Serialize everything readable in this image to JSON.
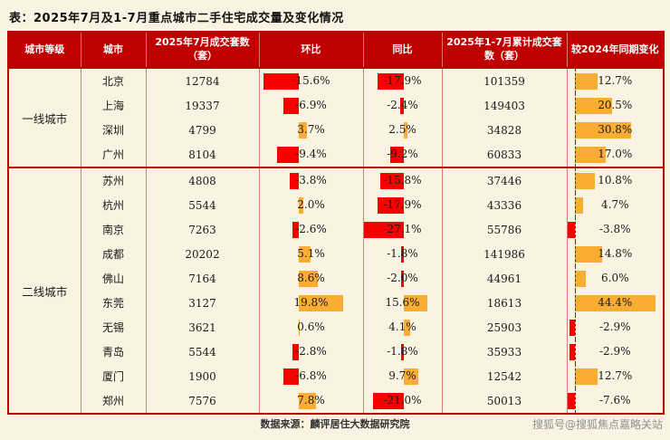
{
  "page": {
    "source": "数据来源：麟评居住大数据研究院",
    "watermark": "搜狐号@搜狐焦点嘉略关站"
  },
  "colors": {
    "page_bg": "#FBF3E1",
    "header_bg": "#C00000",
    "border": "#C00000",
    "negative_bar": "#F80000",
    "positive_bar": "#FBAD33"
  },
  "chart_data": {
    "type": "table",
    "title": "表：2025年7月及1-7月重点城市二手住宅成交量及变化情况",
    "columns": [
      "城市等级",
      "城市",
      "2025年7月成交套数（套）",
      "环比",
      "同比",
      "2025年1-7月累计成交套数（套）",
      "较2024年同期变化"
    ],
    "bar_columns_note": "环比 / 同比 / 较2024年同期变化 三列为数据条：负值红色向左，正值橙色向右",
    "groups": [
      {
        "tier": "一线城市",
        "rows": [
          {
            "city": "北京",
            "jul_sales": "12784",
            "mom": -15.6,
            "mom_text": "-15.6%",
            "yoy": -17.9,
            "yoy_text": "-17.9%",
            "cum_sales": "101359",
            "chg": 12.7,
            "chg_text": "12.7%"
          },
          {
            "city": "上海",
            "jul_sales": "19337",
            "mom": -6.9,
            "mom_text": "-6.9%",
            "yoy": -2.4,
            "yoy_text": "-2.4%",
            "cum_sales": "149403",
            "chg": 20.5,
            "chg_text": "20.5%"
          },
          {
            "city": "深圳",
            "jul_sales": "4799",
            "mom": 3.7,
            "mom_text": "3.7%",
            "yoy": 2.5,
            "yoy_text": "2.5%",
            "cum_sales": "34828",
            "chg": 30.8,
            "chg_text": "30.8%"
          },
          {
            "city": "广州",
            "jul_sales": "8104",
            "mom": -9.4,
            "mom_text": "-9.4%",
            "yoy": -9.2,
            "yoy_text": "-9.2%",
            "cum_sales": "60833",
            "chg": 17.0,
            "chg_text": "17.0%"
          }
        ]
      },
      {
        "tier": "二线城市",
        "rows": [
          {
            "city": "苏州",
            "jul_sales": "4808",
            "mom": -3.8,
            "mom_text": "-3.8%",
            "yoy": -15.8,
            "yoy_text": "-15.8%",
            "cum_sales": "37446",
            "chg": 10.8,
            "chg_text": "10.8%"
          },
          {
            "city": "杭州",
            "jul_sales": "5544",
            "mom": 2.0,
            "mom_text": "2.0%",
            "yoy": -17.9,
            "yoy_text": "-17.9%",
            "cum_sales": "43336",
            "chg": 4.7,
            "chg_text": "4.7%"
          },
          {
            "city": "南京",
            "jul_sales": "7263",
            "mom": -2.6,
            "mom_text": "-2.6%",
            "yoy": -27.1,
            "yoy_text": "-27.1%",
            "cum_sales": "55786",
            "chg": -3.8,
            "chg_text": "-3.8%"
          },
          {
            "city": "成都",
            "jul_sales": "20202",
            "mom": 5.1,
            "mom_text": "5.1%",
            "yoy": -1.8,
            "yoy_text": "-1.8%",
            "cum_sales": "141986",
            "chg": 14.8,
            "chg_text": "14.8%"
          },
          {
            "city": "佛山",
            "jul_sales": "7164",
            "mom": 8.6,
            "mom_text": "8.6%",
            "yoy": -2.0,
            "yoy_text": "-2.0%",
            "cum_sales": "44961",
            "chg": 6.0,
            "chg_text": "6.0%"
          },
          {
            "city": "东莞",
            "jul_sales": "3127",
            "mom": 19.8,
            "mom_text": "19.8%",
            "yoy": 15.6,
            "yoy_text": "15.6%",
            "cum_sales": "18613",
            "chg": 44.4,
            "chg_text": "44.4%"
          },
          {
            "city": "无锡",
            "jul_sales": "3621",
            "mom": 0.6,
            "mom_text": "0.6%",
            "yoy": 4.1,
            "yoy_text": "4.1%",
            "cum_sales": "25903",
            "chg": -2.9,
            "chg_text": "-2.9%"
          },
          {
            "city": "青岛",
            "jul_sales": "5544",
            "mom": -2.8,
            "mom_text": "-2.8%",
            "yoy": -1.8,
            "yoy_text": "-1.8%",
            "cum_sales": "35933",
            "chg": -2.9,
            "chg_text": "-2.9%"
          },
          {
            "city": "厦门",
            "jul_sales": "1900",
            "mom": -6.8,
            "mom_text": "-6.8%",
            "yoy": 9.7,
            "yoy_text": "9.7%",
            "cum_sales": "12542",
            "chg": 12.7,
            "chg_text": "12.7%"
          },
          {
            "city": "郑州",
            "jul_sales": "7576",
            "mom": 7.8,
            "mom_text": "7.8%",
            "yoy": -21.0,
            "yoy_text": "-21.0%",
            "cum_sales": "50013",
            "chg": -7.6,
            "chg_text": "-7.6%"
          }
        ]
      }
    ]
  }
}
